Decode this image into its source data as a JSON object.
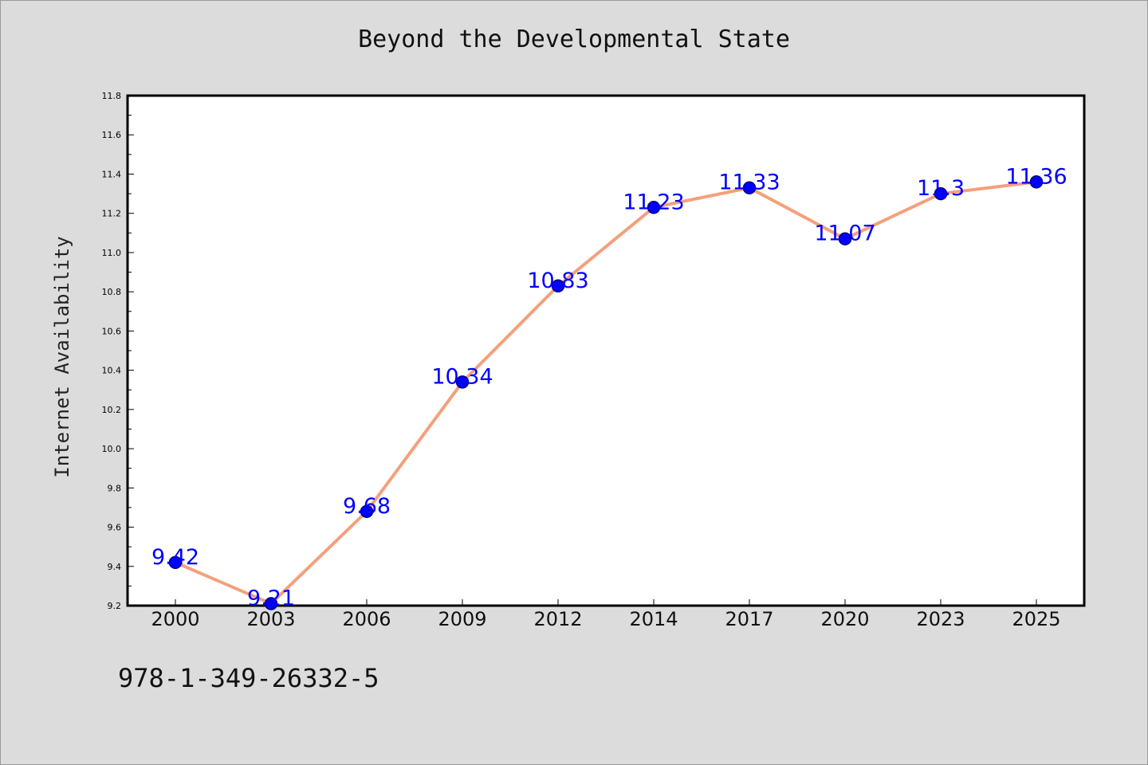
{
  "chart_data": {
    "type": "line",
    "title": "Beyond the Developmental State",
    "xlabel": "",
    "ylabel": "Internet Availability",
    "categories": [
      "2000",
      "2003",
      "2006",
      "2009",
      "2012",
      "2014",
      "2017",
      "2020",
      "2023",
      "2025"
    ],
    "series": [
      {
        "values": [
          9.42,
          9.21,
          9.68,
          10.34,
          10.83,
          11.23,
          11.33,
          11.07,
          11.3,
          11.36
        ],
        "labels": [
          "9.42",
          "9.21",
          "9.68",
          "10.34",
          "10.83",
          "11.23",
          "11.33",
          "11.07",
          "11.3",
          "11.36"
        ]
      }
    ],
    "ylim": [
      9.2,
      11.8
    ],
    "yticks": [
      "9.2",
      "9.4",
      "9.6",
      "9.8",
      "10.0",
      "10.2",
      "10.4",
      "10.6",
      "10.8",
      "11.0",
      "11.2",
      "11.4",
      "11.6",
      "11.8"
    ],
    "grid": false,
    "legend": "none",
    "colors": {
      "line": "#f4a07c",
      "marker": "#0000ff",
      "marker_edge": "#000080",
      "data_label": "#0000ff",
      "plot_background": "#ffffff",
      "figure_background": "#dcdcdc"
    }
  },
  "footer": {
    "text": "978-1-349-26332-5"
  }
}
